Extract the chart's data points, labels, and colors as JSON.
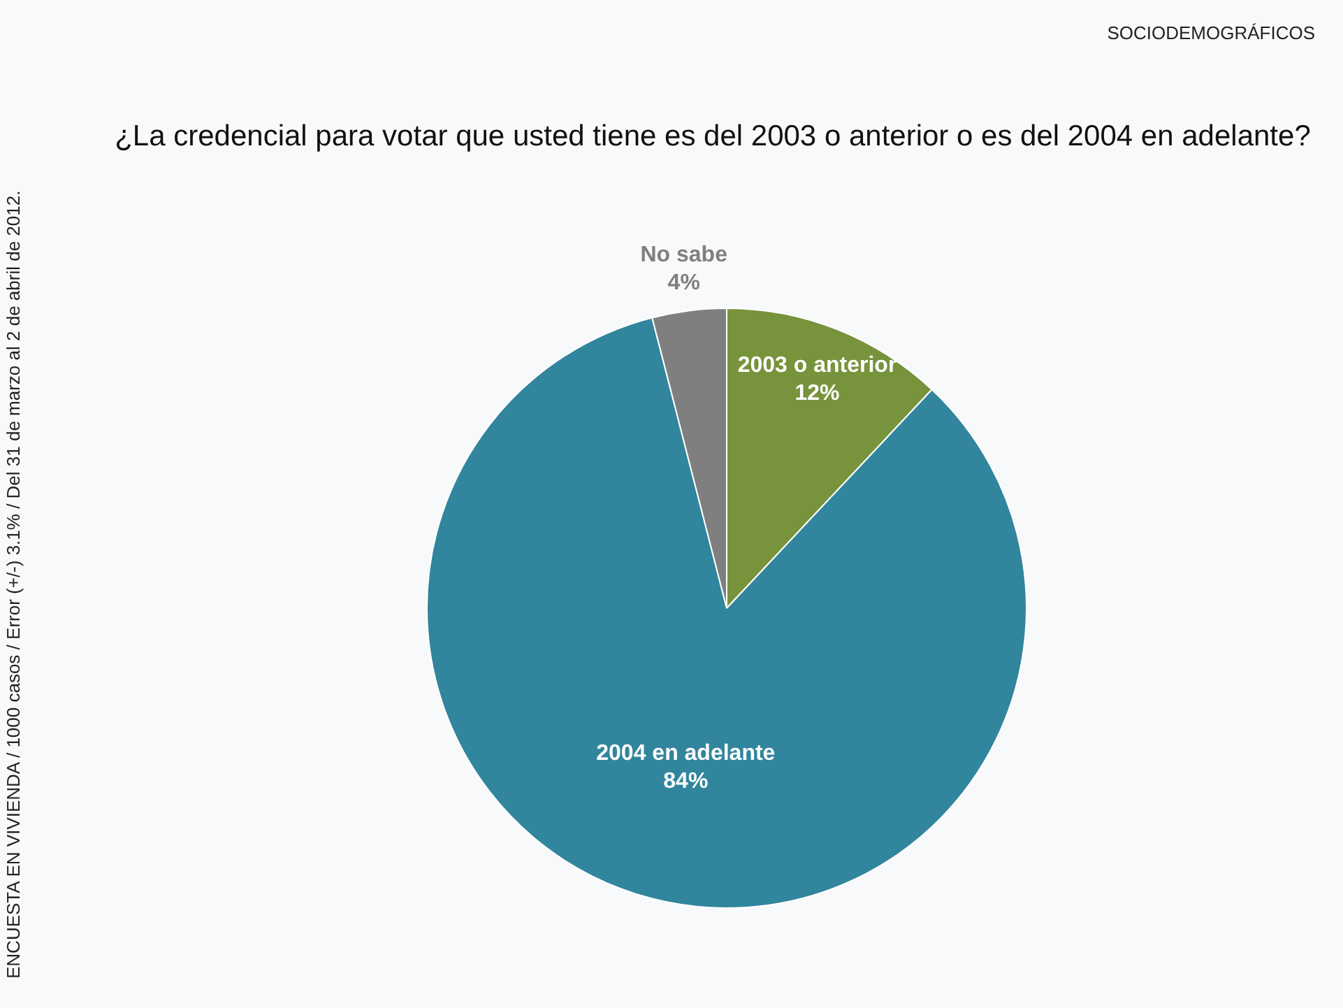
{
  "chart_data": {
    "type": "pie",
    "title": "¿La credencial para votar que usted tiene es del 2003 o anterior o es del 2004 en adelante?",
    "categories": [
      "2003 o anterior",
      "2004 en adelante",
      "No sabe"
    ],
    "values": [
      12,
      84,
      4
    ],
    "colors": [
      "#77933c",
      "#31859c",
      "#7f7f7f"
    ],
    "value_labels": [
      "12%",
      "84%",
      "4%"
    ],
    "legend": false,
    "annotations": [
      "SOCIODEMOGRÁFICOS",
      "ENCUESTA EN VIVIENDA / 1000 casos / Error (+/-) 3.1% / Del 31 de marzo al 2 de abril de 2012."
    ]
  }
}
